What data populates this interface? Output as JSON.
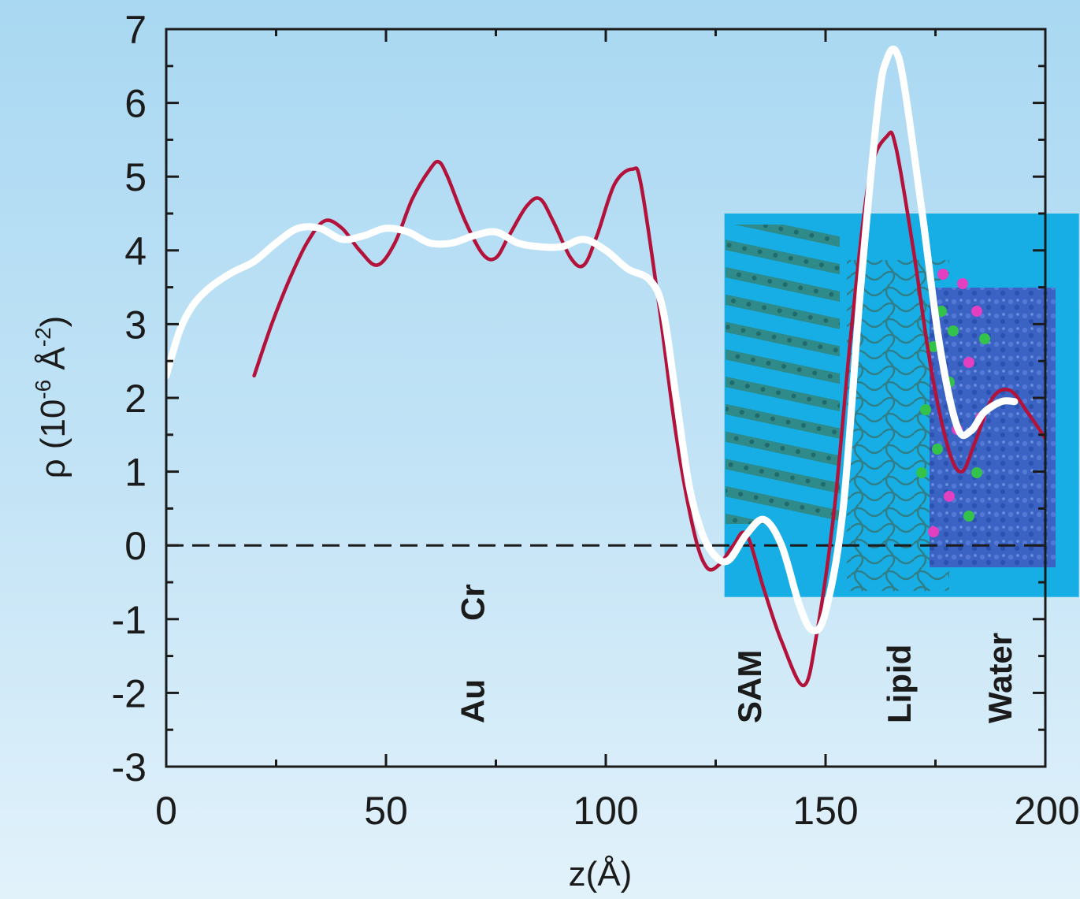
{
  "chart_data": {
    "type": "line",
    "title": "",
    "xlabel": "z(Å)",
    "ylabel_parts": {
      "rho": "ρ",
      "open": "(10",
      "exp1": "-6",
      "unit": " Å",
      "exp2": "-2",
      "close": ")"
    },
    "xlim": [
      0,
      200
    ],
    "ylim": [
      -3,
      7
    ],
    "x_ticks": [
      "0",
      "50",
      "100",
      "150",
      "200"
    ],
    "y_ticks": [
      "-3",
      "-2",
      "-1",
      "0",
      "1",
      "2",
      "3",
      "4",
      "5",
      "6",
      "7"
    ],
    "grid": false,
    "reference_line": {
      "y": 0,
      "style": "dashed"
    },
    "region_labels": [
      {
        "text": "Au",
        "x": 70
      },
      {
        "text": "Cr",
        "x": 70
      },
      {
        "text": "SAM",
        "x": 133
      },
      {
        "text": "Lipid",
        "x": 167
      },
      {
        "text": "Water",
        "x": 190
      }
    ],
    "inset_image": {
      "description": "molecular simulation snapshot of SAM, lipid and water layers",
      "x_range": [
        127,
        200
      ],
      "y_range": [
        -0.7,
        4.5
      ]
    },
    "series": [
      {
        "color": "#b3123a",
        "x": [
          20,
          24,
          28,
          32,
          36,
          40,
          44,
          48,
          52,
          56,
          60,
          62,
          64,
          68,
          72,
          75,
          78,
          82,
          85,
          88,
          92,
          95,
          98,
          102,
          106,
          108,
          112,
          116,
          120,
          123,
          126,
          129,
          132,
          136,
          140,
          145,
          148,
          152,
          156,
          160,
          164,
          166,
          170,
          174,
          178,
          181,
          184,
          188,
          192,
          196,
          200
        ],
        "y": [
          2.3,
          3.0,
          3.6,
          4.1,
          4.4,
          4.3,
          4.0,
          3.8,
          4.1,
          4.7,
          5.1,
          5.2,
          5.0,
          4.4,
          3.95,
          3.9,
          4.2,
          4.6,
          4.7,
          4.4,
          3.9,
          3.8,
          4.2,
          4.9,
          5.1,
          4.9,
          3.3,
          1.5,
          0.2,
          -0.3,
          -0.25,
          0.0,
          0.15,
          -0.6,
          -1.3,
          -1.9,
          -1.2,
          0.5,
          3.0,
          5.0,
          5.55,
          5.4,
          4.0,
          2.4,
          1.3,
          1.0,
          1.4,
          2.0,
          2.1,
          1.8,
          1.45
        ]
      },
      {
        "color": "#ffffff",
        "x": [
          0,
          3,
          6,
          10,
          15,
          20,
          25,
          30,
          35,
          40,
          45,
          50,
          55,
          60,
          65,
          70,
          75,
          80,
          85,
          90,
          95,
          100,
          105,
          110,
          113,
          116,
          119,
          122,
          125,
          128,
          132,
          136,
          140,
          144,
          147,
          150,
          154,
          158,
          162,
          164,
          166,
          168,
          172,
          176,
          180,
          183,
          186,
          190,
          193
        ],
        "y": [
          2.3,
          2.9,
          3.25,
          3.5,
          3.7,
          3.85,
          4.1,
          4.3,
          4.3,
          4.15,
          4.2,
          4.3,
          4.25,
          4.1,
          4.1,
          4.2,
          4.25,
          4.1,
          4.05,
          4.05,
          4.15,
          4.0,
          3.75,
          3.6,
          3.2,
          2.0,
          0.8,
          0.15,
          -0.15,
          -0.2,
          0.15,
          0.35,
          0.0,
          -0.8,
          -1.15,
          -0.9,
          0.5,
          3.5,
          6.0,
          6.6,
          6.7,
          6.2,
          4.5,
          2.7,
          1.6,
          1.55,
          1.8,
          1.95,
          1.95
        ]
      }
    ]
  }
}
